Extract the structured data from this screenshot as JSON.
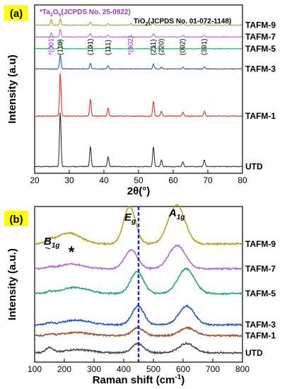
{
  "panels": [
    {
      "label": "(a)",
      "label_bg": "#ffff00",
      "xlabel": "2θ(°)",
      "ylabel": "Intensity (a.u)",
      "x_range": [
        20,
        80
      ],
      "x_ticks": [
        "20",
        "30",
        "40",
        "50",
        "60",
        "70",
        "80"
      ],
      "legend_star": "*",
      "legend_text": "Ta",
      "legend_sub": "2",
      "legend_o": "O",
      "legend_sub2": "5",
      "legend_ref": "(JCPDS No. 25-0922)",
      "ref_prefix": "TiO",
      "ref_sub": "2",
      "ref_text": "(JCPDS No. 01-072-1148)",
      "peak_labels": [
        {
          "text": "*(001)",
          "x": 24.8,
          "color": "#9b30d9"
        },
        {
          "text": "(110)",
          "x": 27.4,
          "color": "#000000"
        },
        {
          "text": "(101)",
          "x": 36.1,
          "color": "#000000"
        },
        {
          "text": "(111)",
          "x": 41.2,
          "color": "#000000"
        },
        {
          "text": "*(002)",
          "x": 47.8,
          "color": "#9b30d9"
        },
        {
          "text": "(211)",
          "x": 54.3,
          "color": "#000000"
        },
        {
          "text": "(220)",
          "x": 56.6,
          "color": "#000000"
        },
        {
          "text": "(002)",
          "x": 62.8,
          "color": "#000000"
        },
        {
          "text": "(301)",
          "x": 69.0,
          "color": "#000000"
        }
      ]
    },
    {
      "label": "(b)",
      "label_bg": "#ffff00",
      "xlabel": "Raman shift (cm",
      "xlabel_sup": "-1",
      "xlabel_end": ")",
      "ylabel": "Intensity (a.u.)",
      "x_range": [
        100,
        800
      ],
      "x_ticks": [
        "100",
        "200",
        "300",
        "400",
        "500",
        "600",
        "700",
        "800"
      ],
      "annot_b1g": "B",
      "annot_b1g_sub": "1g",
      "annot_eg": "E",
      "annot_eg_sub": "g",
      "annot_a1g": "A",
      "annot_a1g_sub": "1g",
      "annot_star": "*",
      "dashed_line_x": 450,
      "dashed_color": "#1f1fd6"
    }
  ],
  "chart_data": [
    {
      "type": "line",
      "xlabel": "2θ(°)",
      "ylabel": "Intensity (a.u)",
      "xlim": [
        20,
        80
      ],
      "series": [
        {
          "name": "TAFM-9",
          "color": "#b5a21a",
          "offset": 0.86,
          "peaks": [
            [
              24.8,
              0.035
            ],
            [
              27.4,
              0.04
            ],
            [
              36.1,
              0.02
            ],
            [
              41.2,
              0.012
            ],
            [
              47.8,
              0.01
            ],
            [
              54.3,
              0.018
            ],
            [
              62.8,
              0.01
            ],
            [
              69.0,
              0.01
            ]
          ]
        },
        {
          "name": "TAFM-7",
          "color": "#b06ad6",
          "offset": 0.79,
          "peaks": [
            [
              24.8,
              0.025
            ],
            [
              27.4,
              0.045
            ],
            [
              36.1,
              0.02
            ],
            [
              41.2,
              0.012
            ],
            [
              47.8,
              0.008
            ],
            [
              54.3,
              0.02
            ],
            [
              62.8,
              0.01
            ],
            [
              69.0,
              0.01
            ]
          ]
        },
        {
          "name": "TAFM-5",
          "color": "#22aa66",
          "offset": 0.72,
          "peaks": [
            [
              24.8,
              0.02
            ],
            [
              27.4,
              0.05
            ],
            [
              36.1,
              0.022
            ],
            [
              41.2,
              0.012
            ],
            [
              47.8,
              0.006
            ],
            [
              54.3,
              0.02
            ],
            [
              62.8,
              0.01
            ],
            [
              69.0,
              0.01
            ]
          ]
        },
        {
          "name": "TAFM-3",
          "color": "#1f57c8",
          "offset": 0.6,
          "peaks": [
            [
              27.4,
              0.08
            ],
            [
              36.1,
              0.035
            ],
            [
              41.2,
              0.02
            ],
            [
              54.3,
              0.03
            ],
            [
              56.6,
              0.01
            ],
            [
              62.8,
              0.012
            ],
            [
              69.0,
              0.012
            ]
          ]
        },
        {
          "name": "TAFM-1",
          "color": "#e03030",
          "offset": 0.32,
          "peaks": [
            [
              27.4,
              0.26
            ],
            [
              36.1,
              0.1
            ],
            [
              41.2,
              0.05
            ],
            [
              54.3,
              0.09
            ],
            [
              56.6,
              0.03
            ],
            [
              62.8,
              0.025
            ],
            [
              69.0,
              0.03
            ]
          ]
        },
        {
          "name": "UTD",
          "color": "#333333",
          "offset": 0.02,
          "peaks": [
            [
              27.4,
              0.33
            ],
            [
              36.1,
              0.12
            ],
            [
              41.2,
              0.06
            ],
            [
              54.3,
              0.12
            ],
            [
              56.6,
              0.04
            ],
            [
              62.8,
              0.03
            ],
            [
              69.0,
              0.04
            ]
          ]
        }
      ]
    },
    {
      "type": "line",
      "xlabel": "Raman shift (cm-1)",
      "ylabel": "Intensity (a.u.)",
      "xlim": [
        100,
        800
      ],
      "series": [
        {
          "name": "TAFM-9",
          "color": "#b5a21a",
          "offset": 0.72,
          "peaks": [
            [
              150,
              0.02,
              10
            ],
            [
              215,
              0.07,
              40
            ],
            [
              420,
              0.24,
              20
            ],
            [
              578,
              0.25,
              28
            ]
          ]
        },
        {
          "name": "TAFM-7",
          "color": "#b06ad6",
          "offset": 0.56,
          "peaks": [
            [
              150,
              0.01,
              10
            ],
            [
              225,
              0.03,
              40
            ],
            [
              425,
              0.12,
              22
            ],
            [
              580,
              0.15,
              28
            ]
          ]
        },
        {
          "name": "TAFM-5",
          "color": "#22aa66",
          "offset": 0.4,
          "peaks": [
            [
              150,
              0.01,
              10
            ],
            [
              235,
              0.04,
              45
            ],
            [
              445,
              0.14,
              22
            ],
            [
              610,
              0.16,
              28
            ]
          ]
        },
        {
          "name": "TAFM-3",
          "color": "#1f57c8",
          "offset": 0.2,
          "peaks": [
            [
              150,
              0.01,
              10
            ],
            [
              240,
              0.03,
              45
            ],
            [
              448,
              0.12,
              20
            ],
            [
              612,
              0.12,
              26
            ]
          ]
        },
        {
          "name": "TAFM-1",
          "color": "#a0522d",
          "offset": 0.13,
          "peaks": [
            [
              150,
              0.01,
              10
            ],
            [
              240,
              0.02,
              45
            ],
            [
              448,
              0.05,
              20
            ],
            [
              615,
              0.05,
              26
            ]
          ]
        },
        {
          "name": "UTD",
          "color": "#444444",
          "offset": 0.02,
          "peaks": [
            [
              150,
              0.035,
              12
            ],
            [
              245,
              0.02,
              45
            ],
            [
              448,
              0.06,
              20
            ],
            [
              612,
              0.06,
              26
            ]
          ]
        }
      ]
    }
  ]
}
